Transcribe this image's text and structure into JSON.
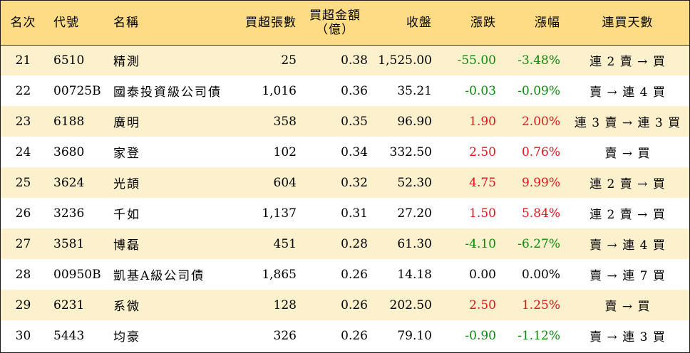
{
  "colors": {
    "up": "#e8121b",
    "down": "#0a8a0a",
    "flat": "#000000",
    "header_bg": "#fedc86",
    "row_alt_bg": "#fdf0cc"
  },
  "chart_data": {
    "type": "table",
    "columns": [
      "名次",
      "代號",
      "名稱",
      "買超張數",
      "買超金額（億）",
      "收盤",
      "漲跌",
      "漲幅",
      "連買天數"
    ],
    "header": {
      "rank": "名次",
      "code": "代號",
      "name": "名稱",
      "buy_lots": "買超張數",
      "buy_amount_1": "買超金額",
      "buy_amount_2": "（億）",
      "close": "收盤",
      "change": "漲跌",
      "pct": "漲幅",
      "days": "連買天數"
    },
    "rows": [
      {
        "rank": "21",
        "code": "6510",
        "name": "精測",
        "buy_lots": "25",
        "buy_amount": "0.38",
        "close": "1,525.00",
        "change": "-55.00",
        "pct": "-3.48%",
        "days": "連 2 賣 → 買",
        "dir": "down"
      },
      {
        "rank": "22",
        "code": "00725B",
        "name": "國泰投資級公司債",
        "buy_lots": "1,016",
        "buy_amount": "0.36",
        "close": "35.21",
        "change": "-0.03",
        "pct": "-0.09%",
        "days": "賣 → 連 4 買",
        "dir": "down"
      },
      {
        "rank": "23",
        "code": "6188",
        "name": "廣明",
        "buy_lots": "358",
        "buy_amount": "0.35",
        "close": "96.90",
        "change": "1.90",
        "pct": "2.00%",
        "days": "連 3 賣 → 連 3 買",
        "dir": "up"
      },
      {
        "rank": "24",
        "code": "3680",
        "name": "家登",
        "buy_lots": "102",
        "buy_amount": "0.34",
        "close": "332.50",
        "change": "2.50",
        "pct": "0.76%",
        "days": "賣 → 買",
        "dir": "up"
      },
      {
        "rank": "25",
        "code": "3624",
        "name": "光頡",
        "buy_lots": "604",
        "buy_amount": "0.32",
        "close": "52.30",
        "change": "4.75",
        "pct": "9.99%",
        "days": "連 2 賣 → 買",
        "dir": "up"
      },
      {
        "rank": "26",
        "code": "3236",
        "name": "千如",
        "buy_lots": "1,137",
        "buy_amount": "0.31",
        "close": "27.20",
        "change": "1.50",
        "pct": "5.84%",
        "days": "連 2 賣 → 買",
        "dir": "up"
      },
      {
        "rank": "27",
        "code": "3581",
        "name": "博磊",
        "buy_lots": "451",
        "buy_amount": "0.28",
        "close": "61.30",
        "change": "-4.10",
        "pct": "-6.27%",
        "days": "賣 → 連 4 買",
        "dir": "down"
      },
      {
        "rank": "28",
        "code": "00950B",
        "name": "凱基A級公司債",
        "buy_lots": "1,865",
        "buy_amount": "0.26",
        "close": "14.18",
        "change": "0.00",
        "pct": "0.00%",
        "days": "賣 → 連 7 買",
        "dir": "flat"
      },
      {
        "rank": "29",
        "code": "6231",
        "name": "系微",
        "buy_lots": "128",
        "buy_amount": "0.26",
        "close": "202.50",
        "change": "2.50",
        "pct": "1.25%",
        "days": "賣 → 買",
        "dir": "up"
      },
      {
        "rank": "30",
        "code": "5443",
        "name": "均豪",
        "buy_lots": "326",
        "buy_amount": "0.26",
        "close": "79.10",
        "change": "-0.90",
        "pct": "-1.12%",
        "days": "賣 → 連 3 買",
        "dir": "down"
      }
    ]
  }
}
